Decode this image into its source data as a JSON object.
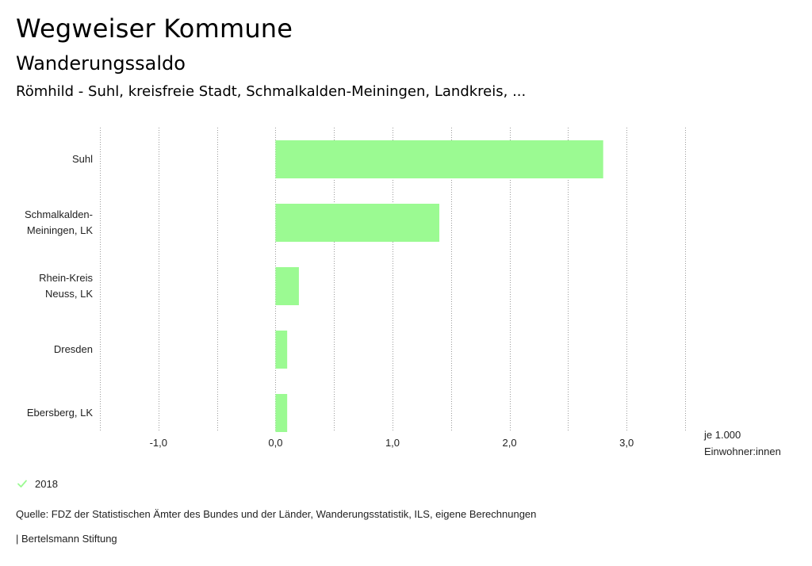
{
  "page": {
    "title": "Wegweiser Kommune",
    "subtitle": "Wanderungssaldo",
    "regions": "Römhild - Suhl, kreisfreie Stadt, Schmalkalden-Meiningen, Landkreis, ..."
  },
  "chart_data": {
    "type": "bar",
    "orientation": "horizontal",
    "categories": [
      "Suhl",
      "Schmalkalden-\nMeiningen, LK",
      "Rhein-Kreis\nNeuss, LK",
      "Dresden",
      "Ebersberg, LK"
    ],
    "series": [
      {
        "name": "2018",
        "values": [
          2.8,
          1.4,
          0.2,
          0.1,
          0.1
        ]
      }
    ],
    "xlim": [
      -1.5,
      3.5
    ],
    "xticks": [
      -1,
      0,
      1,
      2,
      3
    ],
    "xtick_labels": [
      "-1,0",
      "0,0",
      "1,0",
      "2,0",
      "3,0"
    ],
    "grid_step": 0.5,
    "grid": true,
    "unit_label": "je 1.000\nEinwohner:innen",
    "legend_position": "bottom-left",
    "bar_color": "#9bfa92"
  },
  "legend": {
    "label": "2018",
    "icon": "check-icon",
    "color": "#9bfa92"
  },
  "footer": {
    "source": "Quelle: FDZ der Statistischen Ämter des Bundes und der Länder, Wanderungsstatistik, ILS, eigene Berechnungen",
    "credit": "| Bertelsmann Stiftung"
  }
}
